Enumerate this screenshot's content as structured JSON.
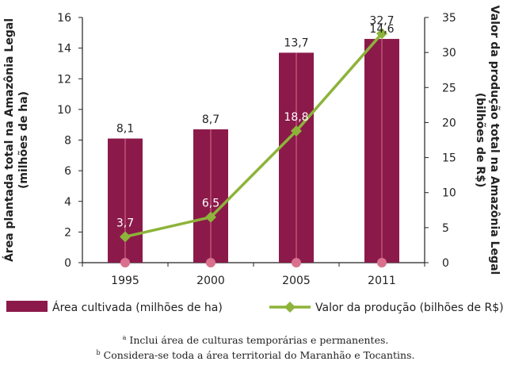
{
  "chart_data": {
    "type": "bar",
    "categories": [
      "1995",
      "2000",
      "2005",
      "2011"
    ],
    "series": [
      {
        "name": "Área cultivada (milhões de ha)",
        "kind": "bar",
        "axis": "left",
        "values": [
          8.1,
          8.7,
          13.7,
          14.6
        ],
        "labels": [
          "8,1",
          "8,7",
          "13,7",
          "14,6"
        ]
      },
      {
        "name": "Valor da produção (bilhões de R$)",
        "kind": "line",
        "axis": "right",
        "values": [
          3.7,
          6.5,
          18.8,
          32.7
        ],
        "labels": [
          "3,7",
          "6,5",
          "18,8",
          "32,7"
        ]
      }
    ],
    "ylabel": "Área plantada total na Amazônia Legal (milhões de ha)",
    "ylabel_lines": [
      "Área plantada total na Amazônia Legal",
      "(milhões de ha)"
    ],
    "y2label": "Valor da produção total na Amazônia Legal (bilhões de R$)",
    "y2label_lines": [
      "Valor da produção total na Amazônia Legal",
      "(bilhões de R$)"
    ],
    "ylim": [
      0,
      16
    ],
    "y2lim": [
      0,
      35
    ],
    "yticks": [
      0,
      2,
      4,
      6,
      8,
      10,
      12,
      14,
      16
    ],
    "y2ticks": [
      0,
      5,
      10,
      15,
      20,
      25,
      30,
      35
    ],
    "grid": false,
    "legend_position": "bottom",
    "colors": {
      "bar": "#8b1a4a",
      "line": "#8db33a",
      "dot": "#d9708d",
      "axis": "#222222"
    }
  },
  "footnotes": {
    "a_marker": "a",
    "a_text": "Inclui área de culturas temporárias e permanentes.",
    "b_marker": "b",
    "b_text": "Considera-se toda a área territorial do Maranhão e Tocantins."
  }
}
